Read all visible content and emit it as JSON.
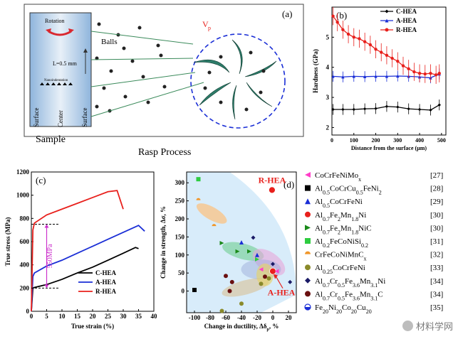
{
  "panel_a": {
    "label": "(a)",
    "rotation": "Rotation",
    "balls": "Balls",
    "vp": "V",
    "vp_sub": "p",
    "length": "L=0.5 mm",
    "nano": "Nanoindentation",
    "surface_left": "Surface",
    "center": "Center",
    "surface_right": "Surface",
    "sample": "Sample",
    "caption": "Rasp Process"
  },
  "chart_data": [
    {
      "type": "line",
      "panel": "(b)",
      "xlabel": "Distance from the surface (µm)",
      "ylabel": "Hardness (GPa)",
      "xlim": [
        0,
        520
      ],
      "ylim": [
        1.75,
        6.0
      ],
      "xticks": [
        0,
        100,
        200,
        300,
        400,
        500
      ],
      "yticks": [
        2,
        3,
        4,
        5
      ],
      "series": [
        {
          "name": "C-HEA",
          "color": "#000000",
          "x": [
            5,
            50,
            100,
            150,
            200,
            250,
            300,
            350,
            400,
            450,
            490
          ],
          "y": [
            2.6,
            2.6,
            2.6,
            2.62,
            2.63,
            2.7,
            2.68,
            2.62,
            2.6,
            2.58,
            2.75
          ]
        },
        {
          "name": "A-HEA",
          "color": "#1a2ed6",
          "x": [
            5,
            50,
            100,
            150,
            200,
            250,
            300,
            350,
            400,
            450,
            490
          ],
          "y": [
            3.7,
            3.68,
            3.7,
            3.69,
            3.7,
            3.7,
            3.71,
            3.7,
            3.68,
            3.65,
            3.78
          ]
        },
        {
          "name": "R-HEA",
          "color": "#e8201c",
          "x": [
            5,
            25,
            50,
            75,
            100,
            125,
            150,
            175,
            200,
            225,
            250,
            275,
            300,
            325,
            350,
            375,
            400,
            425,
            450,
            475,
            490
          ],
          "y": [
            5.7,
            5.5,
            5.25,
            5.1,
            5.0,
            4.95,
            4.85,
            4.75,
            4.6,
            4.5,
            4.4,
            4.3,
            4.2,
            4.05,
            3.95,
            3.85,
            3.8,
            3.78,
            3.8,
            3.75,
            3.8
          ]
        }
      ]
    },
    {
      "type": "line",
      "panel": "(c)",
      "xlabel": "True strain (%)",
      "ylabel": "True stress (MPa)",
      "xlim": [
        0,
        40
      ],
      "ylim": [
        0,
        1200
      ],
      "xticks": [
        0,
        5,
        10,
        15,
        20,
        25,
        30,
        35,
        40
      ],
      "yticks": [
        0,
        200,
        400,
        600,
        800,
        1000,
        1200
      ],
      "annotation": "550MPa",
      "series": [
        {
          "name": "C-HEA",
          "color": "#000000",
          "x": [
            0,
            0.5,
            1,
            5,
            10,
            15,
            20,
            25,
            30,
            34,
            35
          ],
          "y": [
            0,
            200,
            205,
            230,
            275,
            330,
            380,
            440,
            500,
            550,
            540
          ]
        },
        {
          "name": "A-HEA",
          "color": "#1a2ed6",
          "x": [
            0,
            0.5,
            1,
            5,
            10,
            15,
            20,
            25,
            30,
            35,
            37
          ],
          "y": [
            0,
            300,
            330,
            390,
            440,
            500,
            560,
            620,
            680,
            740,
            690
          ]
        },
        {
          "name": "R-HEA",
          "color": "#e8201c",
          "x": [
            0,
            0.5,
            1,
            5,
            10,
            15,
            20,
            25,
            28,
            30
          ],
          "y": [
            0,
            700,
            760,
            830,
            880,
            930,
            980,
            1030,
            1040,
            880
          ]
        }
      ]
    },
    {
      "type": "scatter",
      "panel": "(d)",
      "xlabel": "Change in ductility, Δδ",
      "xlabel_sub": "p",
      "xlabel_unit": ", %",
      "ylabel": "Change in strength, Δσ, %",
      "xlim": [
        -110,
        30
      ],
      "ylim": [
        -60,
        330
      ],
      "xticks": [
        -100,
        -80,
        -60,
        -40,
        -20,
        0,
        20
      ],
      "yticks": [
        0,
        50,
        100,
        150,
        200,
        250,
        300
      ],
      "annotations": [
        "R-HEA",
        "A-HEA"
      ],
      "points": [
        {
          "x": -1,
          "y": 280,
          "color": "#e8201c",
          "marker": "circle-big",
          "label": "R-HEA"
        },
        {
          "x": 0,
          "y": 55,
          "color": "#e8201c",
          "marker": "circle-big",
          "label": "A-HEA"
        },
        {
          "x": -95,
          "y": 310,
          "color": "#2ecc40",
          "marker": "square"
        },
        {
          "x": -95,
          "y": 252,
          "color": "#f0962a",
          "marker": "half"
        },
        {
          "x": -75,
          "y": 180,
          "color": "#f0962a",
          "marker": "half"
        },
        {
          "x": -100,
          "y": 3,
          "color": "#000000",
          "marker": "square"
        },
        {
          "x": -65,
          "y": 133,
          "color": "#1a8a1a",
          "marker": "tri-right"
        },
        {
          "x": -45,
          "y": 110,
          "color": "#1a8a1a",
          "marker": "tri-right"
        },
        {
          "x": -30,
          "y": 110,
          "color": "#1a8a1a",
          "marker": "tri-right"
        },
        {
          "x": -20,
          "y": 88,
          "color": "#2ecc40",
          "marker": "tri-right"
        },
        {
          "x": -40,
          "y": 135,
          "color": "#1a2ed6",
          "marker": "triangle"
        },
        {
          "x": -20,
          "y": 100,
          "color": "#1a2ed6",
          "marker": "triangle"
        },
        {
          "x": -25,
          "y": 148,
          "color": "#1a1a66",
          "marker": "diamond"
        },
        {
          "x": 0,
          "y": 75,
          "color": "#1a1a66",
          "marker": "diamond"
        },
        {
          "x": 22,
          "y": 25,
          "color": "#1a1a66",
          "marker": "diamond"
        },
        {
          "x": -15,
          "y": 60,
          "color": "#ff3ec8",
          "marker": "tri-left"
        },
        {
          "x": 5,
          "y": 55,
          "color": "#ff3ec8",
          "marker": "tri-left"
        },
        {
          "x": -60,
          "y": 42,
          "color": "#6a1010",
          "marker": "circle"
        },
        {
          "x": -52,
          "y": 25,
          "color": "#6a1010",
          "marker": "circle"
        },
        {
          "x": -55,
          "y": 0,
          "color": "#6a1010",
          "marker": "circle"
        },
        {
          "x": -10,
          "y": 40,
          "color": "#6a1010",
          "marker": "circle"
        },
        {
          "x": -65,
          "y": -55,
          "color": "#8a8a2a",
          "marker": "circle"
        },
        {
          "x": -40,
          "y": -35,
          "color": "#8a8a2a",
          "marker": "circle"
        },
        {
          "x": -15,
          "y": 20,
          "color": "#8a8a2a",
          "marker": "circle"
        },
        {
          "x": -5,
          "y": 35,
          "color": "#8a8a2a",
          "marker": "circle"
        }
      ],
      "legend": [
        {
          "text": "CoCrFeNiMo",
          "sub": "x",
          "ref": "[27]",
          "color": "#ff3ec8",
          "marker": "tri-left"
        },
        {
          "text": "Al0.5CoCrCu0.5FeNi2",
          "ref": "[28]",
          "color": "#000000",
          "marker": "square"
        },
        {
          "text": "Al0.5CoCrFeNi",
          "ref": "[29]",
          "color": "#1a2ed6",
          "marker": "triangle"
        },
        {
          "text": "Al0.7Fe2Mn1.8Ni",
          "ref": "[30]",
          "color": "#e8201c",
          "marker": "circle"
        },
        {
          "text": "Al0.7Fe2Mn1.8NiC",
          "ref": "[30]",
          "color": "#1a8a1a",
          "marker": "tri-right"
        },
        {
          "text": "Al0.2FeCoNiSi0.2",
          "ref": "[31]",
          "color": "#2ecc40",
          "marker": "square"
        },
        {
          "text": "CrFeCoNiMnC",
          "sub": "x",
          "ref": "[32]",
          "color": "#f0962a",
          "marker": "half"
        },
        {
          "text": "Al0.25CoCrFeNi",
          "ref": "[33]",
          "color": "#8a8a2a",
          "marker": "circle"
        },
        {
          "text": "Al0.7Cr0.5Fe3.6Mn3.1Ni",
          "ref": "[34]",
          "color": "#1a1a66",
          "marker": "diamond"
        },
        {
          "text": "Al0.7Cr0.5Fe3.6Mn3.1C",
          "ref": "[34]",
          "color": "#6a1010",
          "marker": "circle"
        },
        {
          "text": "Fe20Ni20Co20Cu20",
          "ref": "[35]",
          "color": "#1a2ed6",
          "marker": "halfcircle"
        }
      ]
    }
  ],
  "watermark": "材料学网"
}
